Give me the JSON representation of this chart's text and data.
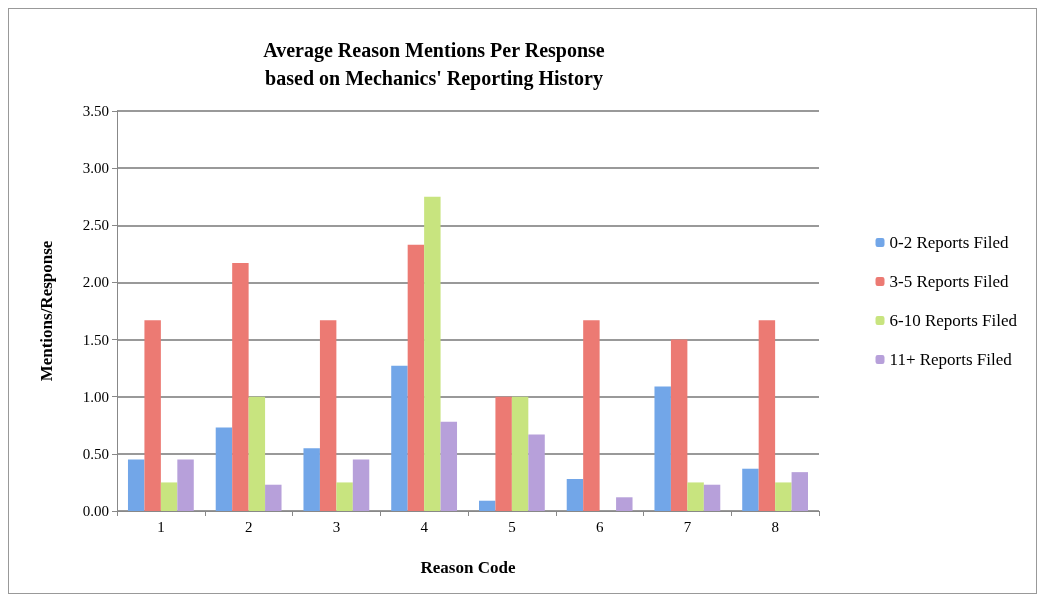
{
  "chart_data": {
    "type": "bar",
    "title": "Average Reason Mentions Per Response\nbased on Mechanics' Reporting History",
    "xlabel": "Reason Code",
    "ylabel": "Mentions/Response",
    "categories": [
      "1",
      "2",
      "3",
      "4",
      "5",
      "6",
      "7",
      "8"
    ],
    "series": [
      {
        "name": "0-2 Reports Filed",
        "color": "#72a6e8",
        "values": [
          0.45,
          0.73,
          0.55,
          1.27,
          0.09,
          0.28,
          1.09,
          0.37
        ]
      },
      {
        "name": "3-5 Reports Filed",
        "color": "#ec7a73",
        "values": [
          1.67,
          2.17,
          1.67,
          2.33,
          1.0,
          1.67,
          1.5,
          1.67
        ]
      },
      {
        "name": "6-10 Reports Filed",
        "color": "#c8e47f",
        "values": [
          0.25,
          1.0,
          0.25,
          2.75,
          1.0,
          0,
          0.25,
          0.25
        ]
      },
      {
        "name": "11+ Reports Filed",
        "color": "#b7a0da",
        "values": [
          0.45,
          0.23,
          0.45,
          0.78,
          0.67,
          0.12,
          0.23,
          0.34
        ]
      }
    ],
    "ylim": [
      0,
      3.5
    ],
    "yticks": [
      {
        "value": 0,
        "label": "0.00"
      },
      {
        "value": 0.5,
        "label": "0.50"
      },
      {
        "value": 1,
        "label": "1.00"
      },
      {
        "value": 1.5,
        "label": "1.50"
      },
      {
        "value": 2,
        "label": "2.00"
      },
      {
        "value": 2.5,
        "label": "2.50"
      },
      {
        "value": 3,
        "label": "3.00"
      },
      {
        "value": 3.5,
        "label": "3.50"
      }
    ],
    "grid": "y",
    "legend": "right"
  }
}
